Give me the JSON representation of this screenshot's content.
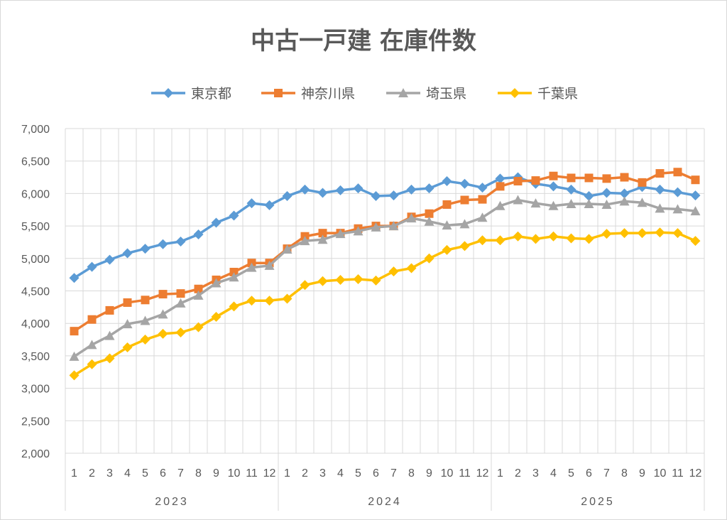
{
  "chart_data": {
    "type": "line",
    "title": "中古一戸建 在庫件数",
    "ylim": [
      2000,
      7000
    ],
    "ystep": 500,
    "yticks": [
      "2,000",
      "2,500",
      "3,000",
      "3,500",
      "4,000",
      "4,500",
      "5,000",
      "5,500",
      "6,000",
      "6,500",
      "7,000"
    ],
    "grid": true,
    "legend_position": "top",
    "years": [
      "2023",
      "2024",
      "2025"
    ],
    "months": [
      "1",
      "2",
      "3",
      "4",
      "5",
      "6",
      "7",
      "8",
      "9",
      "10",
      "11",
      "12"
    ],
    "series": [
      {
        "name": "東京都",
        "color": "#5B9BD5",
        "marker": "diamond",
        "values": [
          4700,
          4870,
          4980,
          5080,
          5150,
          5220,
          5260,
          5370,
          5550,
          5660,
          5850,
          5820,
          5960,
          6060,
          6010,
          6050,
          6080,
          5960,
          5970,
          6060,
          6080,
          6190,
          6150,
          6090,
          6230,
          6250,
          6150,
          6110,
          6060,
          5960,
          6010,
          6000,
          6100,
          6060,
          6020,
          5970
        ]
      },
      {
        "name": "神奈川県",
        "color": "#ED7D31",
        "marker": "square",
        "values": [
          3880,
          4060,
          4200,
          4320,
          4360,
          4450,
          4460,
          4530,
          4670,
          4790,
          4930,
          4930,
          5150,
          5340,
          5390,
          5390,
          5460,
          5500,
          5500,
          5640,
          5690,
          5830,
          5900,
          5910,
          6110,
          6190,
          6200,
          6270,
          6240,
          6240,
          6230,
          6250,
          6170,
          6310,
          6330,
          6210
        ]
      },
      {
        "name": "埼玉県",
        "color": "#A5A5A5",
        "marker": "triangle",
        "values": [
          3490,
          3670,
          3810,
          3990,
          4040,
          4140,
          4310,
          4430,
          4620,
          4710,
          4860,
          4890,
          5140,
          5270,
          5290,
          5380,
          5420,
          5480,
          5500,
          5620,
          5570,
          5510,
          5530,
          5630,
          5810,
          5900,
          5850,
          5810,
          5840,
          5840,
          5830,
          5880,
          5860,
          5770,
          5760,
          5730
        ]
      },
      {
        "name": "千葉県",
        "color": "#FFC000",
        "marker": "diamond",
        "values": [
          3200,
          3370,
          3460,
          3630,
          3750,
          3840,
          3860,
          3940,
          4100,
          4260,
          4350,
          4350,
          4380,
          4590,
          4650,
          4670,
          4680,
          4660,
          4800,
          4850,
          5000,
          5130,
          5190,
          5280,
          5280,
          5340,
          5300,
          5340,
          5310,
          5300,
          5380,
          5390,
          5390,
          5400,
          5390,
          5270
        ]
      }
    ]
  }
}
